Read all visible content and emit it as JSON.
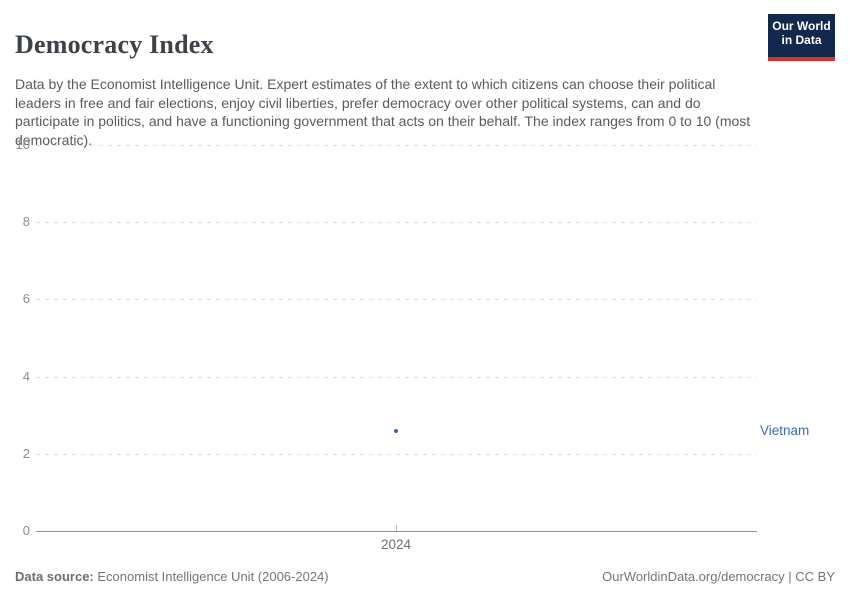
{
  "header": {
    "title": "Democracy Index",
    "logo": {
      "line1": "Our World",
      "line2": "in Data",
      "bg_color": "#12294d",
      "bar_color": "#d0342c"
    }
  },
  "subtitle": "Data by the Economist Intelligence Unit. Expert estimates of the extent to which citizens can choose their political leaders in free and fair elections, enjoy civil liberties, prefer democracy over other political systems, can and do participate in politics, and have a functioning government that acts on their behalf. The index ranges from 0 to 10 (most democratic).",
  "chart_data": {
    "type": "scatter",
    "title": "Democracy Index",
    "x": [
      2024
    ],
    "series": [
      {
        "name": "Vietnam",
        "values": [
          2.6
        ],
        "color": "#3c63a6",
        "label_color": "#3d6bb0"
      }
    ],
    "xlabel": "",
    "ylabel": "",
    "ylim": [
      0,
      10
    ],
    "yticks": [
      0,
      2,
      4,
      6,
      8,
      10
    ],
    "xticks": [
      "2024"
    ],
    "grid": "horizontal-dashed",
    "legend_position": "entity-label-right"
  },
  "footer": {
    "source_label": "Data source:",
    "source_value": "Economist Intelligence Unit (2006-2024)",
    "attribution": "OurWorldinData.org/democracy | CC BY"
  }
}
